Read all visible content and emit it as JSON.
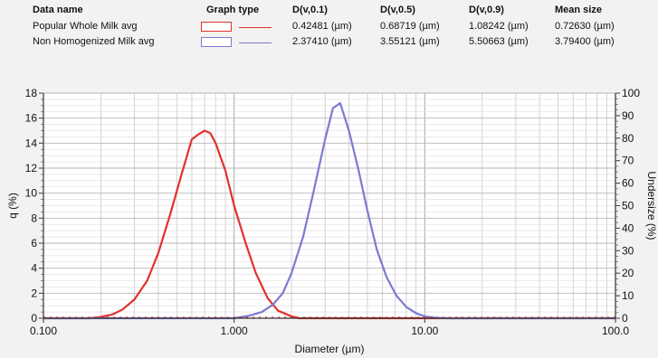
{
  "legend": {
    "headers": {
      "name": "Data name",
      "graph_type": "Graph type",
      "dv01": "D(v,0.1)",
      "dv05": "D(v,0.5)",
      "dv09": "D(v,0.9)",
      "mean": "Mean size"
    },
    "rows": [
      {
        "name": "Popular Whole Milk avg",
        "color": "#e3312c",
        "dv01": "0.42481 (µm)",
        "dv05": "0.68719 (µm)",
        "dv09": "1.08242 (µm)",
        "mean": "0.72630 (µm)"
      },
      {
        "name": "Non Homogenized Milk avg",
        "color": "#7b7bd0",
        "dv01": "2.37410 (µm)",
        "dv05": "3.55121 (µm)",
        "dv09": "5.50663 (µm)",
        "mean": "3.79400 (µm)"
      }
    ]
  },
  "chart_data": {
    "type": "line",
    "xlabel": "Diameter (µm)",
    "ylabel": "q (%)",
    "y2label": "Undersize (%)",
    "xscale": "log",
    "xlim": [
      0.1,
      100
    ],
    "ylim": [
      0,
      18
    ],
    "y2lim": [
      0,
      100
    ],
    "x_tick_labels": [
      "0.100",
      "1.000",
      "10.00",
      "100.0"
    ],
    "x_ticks": [
      0.1,
      1,
      10,
      100
    ],
    "y_ticks": [
      0,
      2,
      4,
      6,
      8,
      10,
      12,
      14,
      16,
      18
    ],
    "y2_ticks": [
      0,
      10,
      20,
      30,
      40,
      50,
      60,
      70,
      80,
      90,
      100
    ],
    "grid": true,
    "series": [
      {
        "name": "Popular Whole Milk avg",
        "color": "#e3312c",
        "x": [
          0.1,
          0.175,
          0.2,
          0.23,
          0.26,
          0.3,
          0.35,
          0.4,
          0.46,
          0.53,
          0.6,
          0.65,
          0.7,
          0.75,
          0.8,
          0.9,
          1.0,
          1.15,
          1.3,
          1.5,
          1.7,
          2.0,
          2.2,
          100
        ],
        "y": [
          0,
          0,
          0.1,
          0.3,
          0.7,
          1.5,
          3.0,
          5.2,
          8.2,
          11.5,
          14.3,
          14.7,
          15.0,
          14.8,
          14.0,
          11.8,
          9.0,
          6.0,
          3.6,
          1.6,
          0.6,
          0.15,
          0,
          0
        ]
      },
      {
        "name": "Non Homogenized Milk avg",
        "color": "#7b7bd0",
        "x": [
          0.1,
          1.0,
          1.2,
          1.4,
          1.6,
          1.8,
          2.0,
          2.3,
          2.6,
          3.0,
          3.3,
          3.6,
          4.0,
          4.5,
          5.0,
          5.6,
          6.3,
          7.1,
          8.0,
          9.0,
          10.0,
          11.5,
          13.0,
          100
        ],
        "y": [
          0,
          0,
          0.2,
          0.5,
          1.1,
          2.0,
          3.6,
          6.5,
          10.0,
          14.3,
          16.8,
          17.2,
          15.0,
          11.8,
          8.6,
          5.5,
          3.3,
          1.8,
          0.9,
          0.4,
          0.15,
          0.03,
          0,
          0
        ]
      }
    ]
  }
}
